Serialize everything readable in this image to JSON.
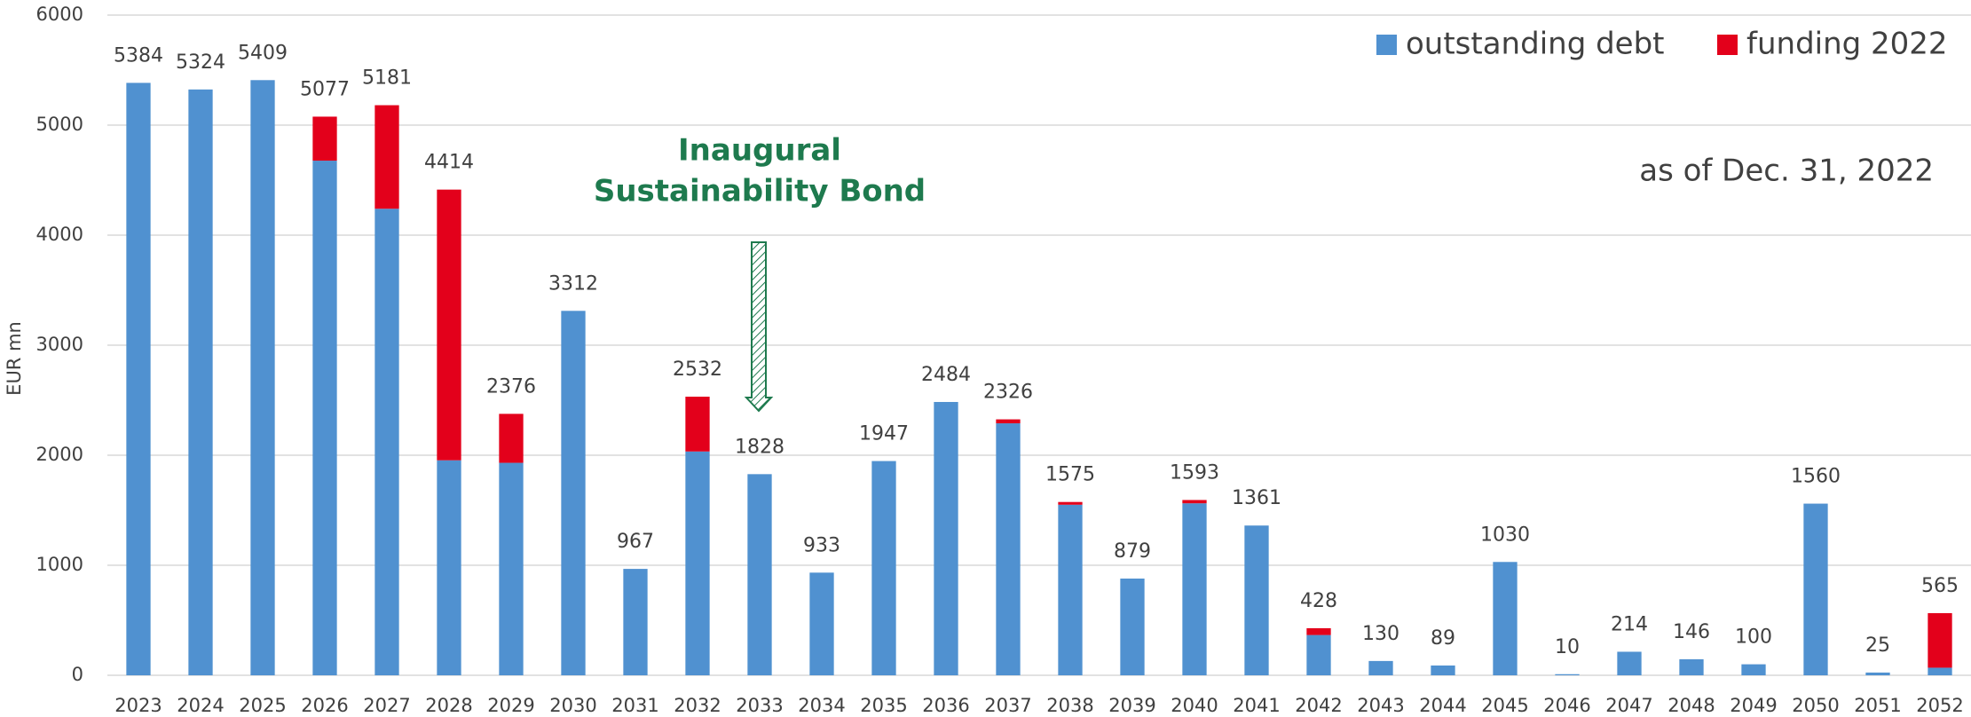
{
  "chart_data": {
    "type": "stacked_bar",
    "y_label": "EUR mn",
    "annotation": [
      "Inaugural",
      "Sustainability Bond"
    ],
    "note": "as of Dec. 31, 2022",
    "categories": [
      "2023",
      "2024",
      "2025",
      "2026",
      "2027",
      "2028",
      "2029",
      "2030",
      "2031",
      "2032",
      "2033",
      "2034",
      "2035",
      "2036",
      "2037",
      "2038",
      "2039",
      "2040",
      "2041",
      "2042",
      "2043",
      "2044",
      "2045",
      "2046",
      "2047",
      "2048",
      "2049",
      "2050",
      "2051",
      "2052"
    ],
    "series": [
      {
        "name": "outstanding debt",
        "color": "#5091d0",
        "values": [
          5384,
          5324,
          5409,
          4677,
          4240,
          1954,
          1931,
          3312,
          967,
          2034,
          1828,
          933,
          1947,
          2484,
          2290,
          1550,
          879,
          1563,
          1361,
          366,
          130,
          89,
          1030,
          10,
          214,
          146,
          100,
          1560,
          25,
          69
        ]
      },
      {
        "name": "funding 2022",
        "color": "#e3001b",
        "values": [
          0,
          0,
          0,
          400,
          941,
          2460,
          445,
          0,
          0,
          498,
          0,
          0,
          0,
          0,
          36,
          25,
          0,
          30,
          0,
          62,
          0,
          0,
          0,
          0,
          0,
          0,
          0,
          0,
          0,
          496
        ]
      }
    ],
    "totals": [
      5384,
      5324,
      5409,
      5077,
      5181,
      4414,
      2376,
      3312,
      967,
      2532,
      1828,
      933,
      1947,
      2484,
      2326,
      1575,
      879,
      1593,
      1361,
      428,
      130,
      89,
      1030,
      10,
      214,
      146,
      100,
      1560,
      25,
      565
    ],
    "ylim": [
      0,
      6000
    ],
    "yticks": [
      0,
      1000,
      2000,
      3000,
      4000,
      5000,
      6000
    ],
    "grid": true
  }
}
